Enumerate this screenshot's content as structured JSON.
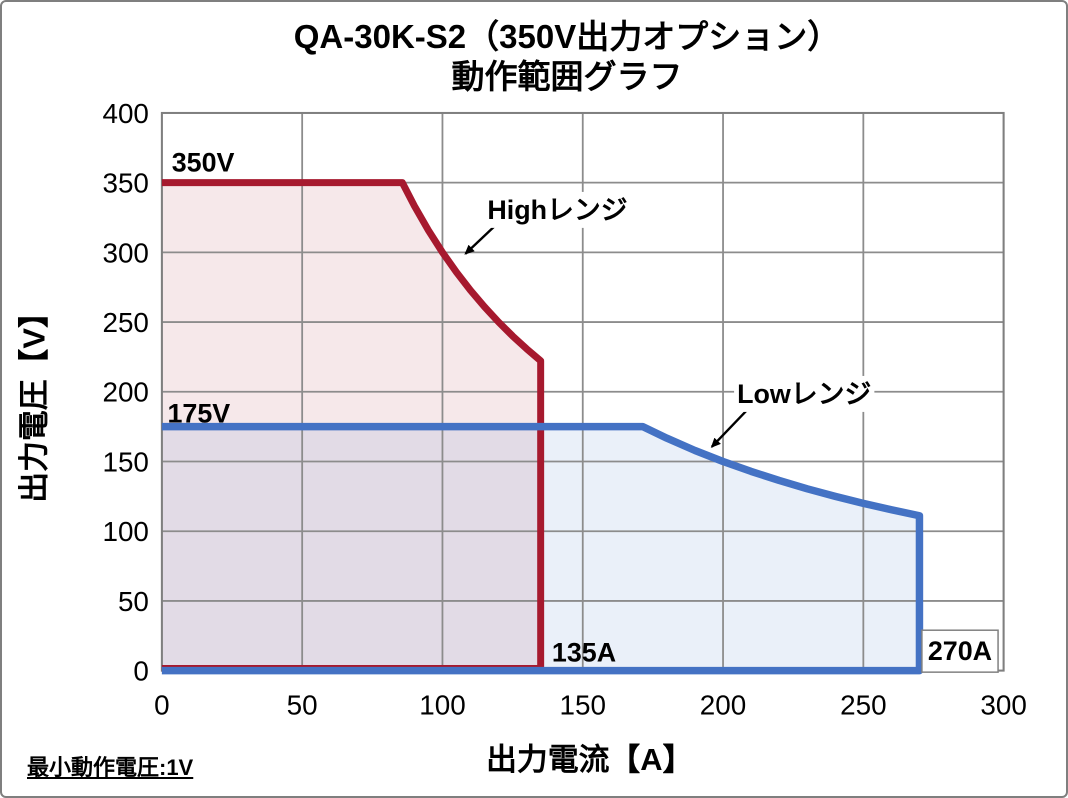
{
  "title": {
    "line1": "QA-30K-S2（350V出力オプション）",
    "line2": "動作範囲グラフ"
  },
  "footnote": "最小動作電圧:1V",
  "chart_data": {
    "type": "area",
    "title": "QA-30K-S2（350V出力オプション） 動作範囲グラフ",
    "xlabel": "出力電流【A】",
    "ylabel": "出力電圧【V】",
    "xlim": [
      0,
      300
    ],
    "ylim": [
      0,
      400
    ],
    "xticks": [
      0,
      50,
      100,
      150,
      200,
      250,
      300
    ],
    "yticks": [
      0,
      50,
      100,
      150,
      200,
      250,
      300,
      350,
      400
    ],
    "grid": true,
    "grid_color": "#8c8c8c",
    "border_color": "#7f7f7f",
    "series": [
      {
        "name": "Highレンジ",
        "description": "High range: 350V up to 85.7A, 30kW constant-power limit down to 222V at 135A, max current 135A",
        "color": "#a6192e",
        "fill": "rgba(166,25,46,0.10)",
        "line_width": 7,
        "points": [
          [
            0,
            350
          ],
          [
            85.7,
            350
          ],
          [
            90,
            333.3
          ],
          [
            95,
            315.8
          ],
          [
            100,
            300
          ],
          [
            105,
            285.7
          ],
          [
            110,
            272.7
          ],
          [
            115,
            260.9
          ],
          [
            120,
            250
          ],
          [
            125,
            240
          ],
          [
            130,
            230.8
          ],
          [
            135,
            222.2
          ],
          [
            135,
            1.5
          ],
          [
            0,
            1.5
          ]
        ]
      },
      {
        "name": "Lowレンジ",
        "description": "Low range: 175V up to 171.4A, 30kW constant-power limit down to 111V at 270A, max current 270A",
        "color": "#4472c4",
        "fill": "rgba(68,114,196,0.11)",
        "line_width": 7.5,
        "points": [
          [
            0,
            175
          ],
          [
            171.4,
            175
          ],
          [
            180,
            166.7
          ],
          [
            190,
            157.9
          ],
          [
            200,
            150
          ],
          [
            210,
            142.9
          ],
          [
            220,
            136.4
          ],
          [
            230,
            130.4
          ],
          [
            240,
            125
          ],
          [
            250,
            120
          ],
          [
            260,
            115.4
          ],
          [
            270,
            111.1
          ],
          [
            270,
            0
          ],
          [
            0,
            0
          ]
        ]
      }
    ],
    "annotations": [
      {
        "id": "label-350v",
        "text": "350V",
        "ax": 3.5,
        "ay": 358,
        "bold": true,
        "size": 27
      },
      {
        "id": "label-175v",
        "text": "175V",
        "ax": 2.0,
        "ay": 178,
        "bold": true,
        "size": 27
      },
      {
        "id": "label-135a",
        "text": "135A",
        "ax": 139,
        "ay": 6.5,
        "bold": true,
        "size": 27
      },
      {
        "id": "label-270a",
        "text": "270A",
        "ax": 273,
        "ay": 7.5,
        "bold": true,
        "size": 27,
        "boxed": true
      },
      {
        "id": "label-high-range",
        "text": "Highレンジ",
        "ax": 116,
        "ay": 324,
        "bold": true,
        "size": 27,
        "bg": true
      },
      {
        "id": "label-low-range",
        "text": "Lowレンジ",
        "ax": 205,
        "ay": 192,
        "bold": true,
        "size": 27,
        "bg": true
      }
    ],
    "arrows": [
      {
        "id": "arrow-high-range",
        "x1": 119.5,
        "y1": 320.5,
        "x2": 108.2,
        "y2": 299.0
      },
      {
        "id": "arrow-low-range",
        "x1": 210.3,
        "y1": 190.6,
        "x2": 196.0,
        "y2": 160.5
      }
    ]
  }
}
